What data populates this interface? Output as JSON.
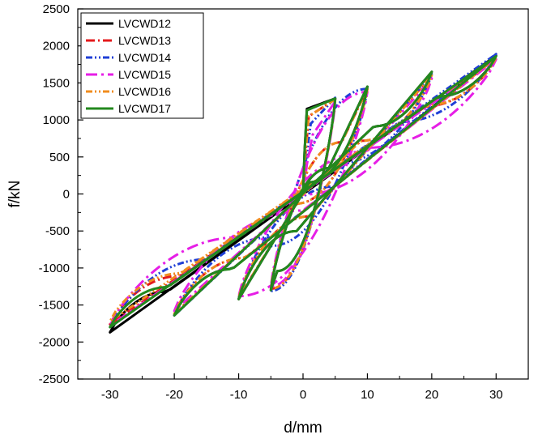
{
  "chart_data": {
    "type": "line",
    "title": "",
    "xlabel": "d/mm",
    "ylabel": "f/kN",
    "xlim": [
      -35,
      35
    ],
    "ylim": [
      -2500,
      2500
    ],
    "xticks": [
      -30,
      -20,
      -10,
      0,
      10,
      20,
      30
    ],
    "yticks": [
      -2500,
      -2000,
      -1500,
      -1000,
      -500,
      0,
      500,
      1000,
      1500,
      2000,
      2500
    ],
    "grid": false,
    "legend_position": "top-left",
    "series": [
      {
        "name": "LVCWD12",
        "color": "#000000",
        "dash": "solid",
        "amplitudes": [
          5,
          10,
          20,
          30
        ],
        "peak_force_pos": [
          1290,
          1450,
          1650,
          1870
        ],
        "peak_force_neg": [
          -1300,
          -1420,
          -1640,
          -1870
        ],
        "yield_force": 1150,
        "yield_disp": 0.6,
        "unload_return_disp": 4.5
      },
      {
        "name": "LVCWD13",
        "color": "#e41a1c",
        "dash": "dash-dot",
        "amplitudes": [
          5,
          10,
          20,
          30
        ],
        "peak_force_pos": [
          1280,
          1420,
          1600,
          1840
        ],
        "peak_force_neg": [
          -1280,
          -1400,
          -1620,
          -1760
        ],
        "yield_force": 1050,
        "yield_disp": 0.9,
        "unload_return_disp": 5.5
      },
      {
        "name": "LVCWD14",
        "color": "#1f3fd6",
        "dash": "dash-dot-dot",
        "amplitudes": [
          5,
          10,
          20,
          30
        ],
        "peak_force_pos": [
          1300,
          1420,
          1620,
          1890
        ],
        "peak_force_neg": [
          -1310,
          -1410,
          -1640,
          -1800
        ],
        "yield_force": 950,
        "yield_disp": 1.2,
        "unload_return_disp": 7.5
      },
      {
        "name": "LVCWD15",
        "color": "#e61ee6",
        "dash": "long-dash-dot",
        "amplitudes": [
          5,
          10,
          20,
          30
        ],
        "peak_force_pos": [
          1250,
          1380,
          1560,
          1820
        ],
        "peak_force_neg": [
          -1250,
          -1380,
          -1580,
          -1780
        ],
        "yield_force": 800,
        "yield_disp": 1.5,
        "unload_return_disp": 10
      },
      {
        "name": "LVCWD16",
        "color": "#f08c1e",
        "dash": "dash-dot-dot",
        "amplitudes": [
          5,
          10,
          20,
          30
        ],
        "peak_force_pos": [
          1280,
          1420,
          1600,
          1840
        ],
        "peak_force_neg": [
          -1280,
          -1400,
          -1620,
          -1720
        ],
        "yield_force": 1050,
        "yield_disp": 0.9,
        "unload_return_disp": 5.5
      },
      {
        "name": "LVCWD17",
        "color": "#23881e",
        "dash": "solid",
        "amplitudes": [
          5,
          10,
          20,
          30
        ],
        "peak_force_pos": [
          1290,
          1450,
          1650,
          1860
        ],
        "peak_force_neg": [
          -1300,
          -1420,
          -1640,
          -1800
        ],
        "yield_force": 1130,
        "yield_disp": 0.6,
        "unload_return_disp": 4.5
      }
    ]
  }
}
